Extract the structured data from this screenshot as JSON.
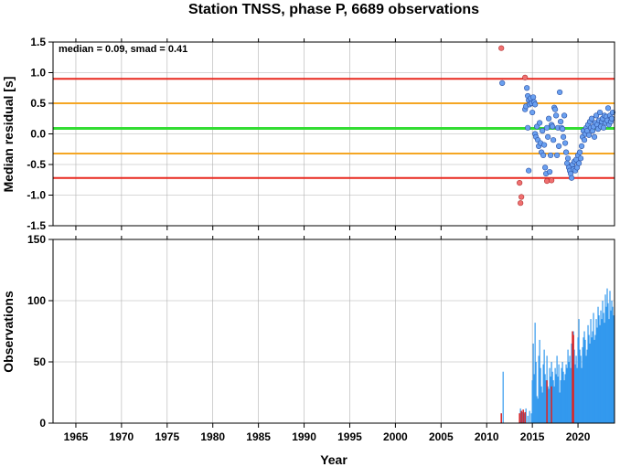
{
  "title": "Station TNSS, phase P, 6689 observations",
  "colors": {
    "median_line": "#33dd33",
    "smad_lines": "#f5a623",
    "outer_lines": "#e8281e",
    "point_normal": "#6aa0f0",
    "point_outlier": "#f07070",
    "bar_normal": "#3399ee",
    "bar_outlier": "#dd2222"
  },
  "chart_data": [
    {
      "type": "scatter",
      "annotation": "median = 0.09, smad = 0.41",
      "ylabel": "Median residual [s]",
      "xlim": [
        1962.5,
        2024.0
      ],
      "ylim": [
        -1.5,
        1.5
      ],
      "xticks": [
        1965,
        1970,
        1975,
        1980,
        1985,
        1990,
        1995,
        2000,
        2005,
        2010,
        2015,
        2020
      ],
      "yticks": [
        -1.5,
        -1.0,
        -0.5,
        0.0,
        0.5,
        1.0,
        1.5
      ],
      "ytick_labels": [
        "-1.5",
        "-1.0",
        "-0.5",
        "0.0",
        "0.5",
        "1.0",
        "1.5"
      ],
      "grid": true,
      "hlines": [
        {
          "y": 0.9,
          "kind": "outer"
        },
        {
          "y": 0.5,
          "kind": "smad"
        },
        {
          "y": 0.09,
          "kind": "median"
        },
        {
          "y": -0.32,
          "kind": "smad"
        },
        {
          "y": -0.72,
          "kind": "outer"
        }
      ],
      "outliers": [
        [
          2011.6,
          1.4
        ],
        [
          2013.6,
          -0.8
        ],
        [
          2013.8,
          -1.03
        ],
        [
          2013.7,
          -1.13
        ],
        [
          2014.2,
          0.92
        ],
        [
          2016.6,
          -0.77
        ],
        [
          2017.1,
          -0.76
        ]
      ],
      "points": [
        [
          2011.7,
          0.83
        ],
        [
          2014.2,
          0.4
        ],
        [
          2014.3,
          0.45
        ],
        [
          2014.4,
          0.75
        ],
        [
          2014.5,
          0.62
        ],
        [
          2014.6,
          0.55
        ],
        [
          2014.7,
          0.48
        ],
        [
          2014.8,
          0.58
        ],
        [
          2014.9,
          0.5
        ],
        [
          2015.0,
          0.35
        ],
        [
          2015.1,
          0.6
        ],
        [
          2015.2,
          0.52
        ],
        [
          2015.3,
          0.48
        ],
        [
          2014.5,
          0.1
        ],
        [
          2014.6,
          -0.6
        ],
        [
          2015.3,
          0.0
        ],
        [
          2015.4,
          -0.05
        ],
        [
          2015.5,
          0.12
        ],
        [
          2015.6,
          -0.1
        ],
        [
          2015.7,
          -0.2
        ],
        [
          2015.8,
          0.18
        ],
        [
          2015.9,
          -0.15
        ],
        [
          2016.0,
          -0.3
        ],
        [
          2016.1,
          0.05
        ],
        [
          2016.2,
          -0.35
        ],
        [
          2016.3,
          -0.18
        ],
        [
          2016.4,
          -0.55
        ],
        [
          2016.5,
          -0.65
        ],
        [
          2016.6,
          0.1
        ],
        [
          2016.7,
          -0.05
        ],
        [
          2016.8,
          0.25
        ],
        [
          2016.9,
          -0.62
        ],
        [
          2017.0,
          -0.35
        ],
        [
          2017.1,
          0.15
        ],
        [
          2017.2,
          0.12
        ],
        [
          2017.3,
          -0.1
        ],
        [
          2017.4,
          0.43
        ],
        [
          2017.5,
          0.4
        ],
        [
          2017.6,
          0.3
        ],
        [
          2017.7,
          -0.35
        ],
        [
          2017.8,
          0.1
        ],
        [
          2017.9,
          -0.2
        ],
        [
          2018.0,
          0.68
        ],
        [
          2018.1,
          0.2
        ],
        [
          2018.2,
          0.1
        ],
        [
          2018.3,
          0.08
        ],
        [
          2018.4,
          -0.05
        ],
        [
          2018.5,
          0.3
        ],
        [
          2018.6,
          -0.15
        ],
        [
          2018.7,
          -0.3
        ],
        [
          2018.8,
          -0.48
        ],
        [
          2018.9,
          -0.4
        ],
        [
          2019.0,
          -0.55
        ],
        [
          2019.1,
          -0.6
        ],
        [
          2019.2,
          -0.65
        ],
        [
          2019.3,
          -0.72
        ],
        [
          2019.4,
          -0.5
        ],
        [
          2019.5,
          -0.58
        ],
        [
          2019.6,
          -0.45
        ],
        [
          2019.7,
          -0.6
        ],
        [
          2019.8,
          -0.42
        ],
        [
          2019.9,
          -0.55
        ],
        [
          2020.0,
          -0.35
        ],
        [
          2020.1,
          -0.48
        ],
        [
          2020.2,
          -0.3
        ],
        [
          2020.3,
          -0.4
        ],
        [
          2020.4,
          -0.2
        ],
        [
          2020.5,
          -0.05
        ],
        [
          2020.6,
          0.05
        ],
        [
          2020.7,
          -0.1
        ],
        [
          2020.8,
          0.0
        ],
        [
          2020.9,
          0.1
        ],
        [
          2021.0,
          0.05
        ],
        [
          2021.1,
          0.15
        ],
        [
          2021.2,
          -0.02
        ],
        [
          2021.3,
          0.2
        ],
        [
          2021.4,
          0.1
        ],
        [
          2021.5,
          0.25
        ],
        [
          2021.6,
          0.05
        ],
        [
          2021.7,
          0.12
        ],
        [
          2021.8,
          -0.05
        ],
        [
          2021.9,
          0.18
        ],
        [
          2022.0,
          0.3
        ],
        [
          2022.1,
          0.15
        ],
        [
          2022.2,
          0.08
        ],
        [
          2022.3,
          0.22
        ],
        [
          2022.4,
          0.35
        ],
        [
          2022.5,
          0.12
        ],
        [
          2022.6,
          0.2
        ],
        [
          2022.7,
          0.25
        ],
        [
          2022.8,
          0.1
        ],
        [
          2022.9,
          0.3
        ],
        [
          2023.0,
          0.18
        ],
        [
          2023.1,
          0.28
        ],
        [
          2023.2,
          0.22
        ],
        [
          2023.3,
          0.42
        ],
        [
          2023.4,
          0.15
        ],
        [
          2023.5,
          0.3
        ],
        [
          2023.6,
          0.2
        ],
        [
          2023.7,
          0.25
        ],
        [
          2023.8,
          0.35
        ]
      ]
    },
    {
      "type": "bar",
      "ylabel": "Observations",
      "xlabel": "Year",
      "xlim": [
        1962.5,
        2024.0
      ],
      "ylim": [
        0,
        150
      ],
      "xticks": [
        1965,
        1970,
        1975,
        1980,
        1985,
        1990,
        1995,
        2000,
        2005,
        2010,
        2015,
        2020
      ],
      "yticks": [
        0,
        50,
        100,
        150
      ],
      "grid": true,
      "bar_width_years": 0.08,
      "bars": [
        [
          2011.6,
          8
        ],
        [
          2011.8,
          42
        ],
        [
          2013.6,
          8
        ],
        [
          2013.7,
          12
        ],
        [
          2013.8,
          10
        ],
        [
          2013.9,
          9
        ],
        [
          2014.0,
          11
        ],
        [
          2014.1,
          8
        ],
        [
          2014.3,
          12
        ],
        [
          2014.5,
          6
        ],
        [
          2014.7,
          10
        ],
        [
          2014.9,
          8
        ],
        [
          2015.0,
          35
        ],
        [
          2015.1,
          65
        ],
        [
          2015.2,
          40
        ],
        [
          2015.3,
          82
        ],
        [
          2015.4,
          50
        ],
        [
          2015.5,
          22
        ],
        [
          2015.6,
          20
        ],
        [
          2015.7,
          55
        ],
        [
          2015.8,
          68
        ],
        [
          2015.9,
          45
        ],
        [
          2016.0,
          30
        ],
        [
          2016.1,
          25
        ],
        [
          2016.2,
          48
        ],
        [
          2016.3,
          60
        ],
        [
          2016.4,
          40
        ],
        [
          2016.5,
          35
        ],
        [
          2016.6,
          55
        ],
        [
          2016.7,
          30
        ],
        [
          2016.8,
          28
        ],
        [
          2016.9,
          45
        ],
        [
          2017.0,
          38
        ],
        [
          2017.1,
          50
        ],
        [
          2017.2,
          42
        ],
        [
          2017.3,
          35
        ],
        [
          2017.4,
          30
        ],
        [
          2017.5,
          45
        ],
        [
          2017.6,
          40
        ],
        [
          2017.7,
          55
        ],
        [
          2017.8,
          38
        ],
        [
          2017.9,
          48
        ],
        [
          2018.0,
          25
        ],
        [
          2018.1,
          35
        ],
        [
          2018.2,
          45
        ],
        [
          2018.3,
          50
        ],
        [
          2018.4,
          42
        ],
        [
          2018.5,
          35
        ],
        [
          2018.6,
          40
        ],
        [
          2018.7,
          48
        ],
        [
          2018.8,
          45
        ],
        [
          2018.9,
          60
        ],
        [
          2019.0,
          50
        ],
        [
          2019.1,
          55
        ],
        [
          2019.2,
          45
        ],
        [
          2019.3,
          65
        ],
        [
          2019.4,
          72
        ],
        [
          2019.5,
          75
        ],
        [
          2019.6,
          60
        ],
        [
          2019.7,
          48
        ],
        [
          2019.8,
          55
        ],
        [
          2019.9,
          45
        ],
        [
          2020.0,
          70
        ],
        [
          2020.1,
          85
        ],
        [
          2020.2,
          60
        ],
        [
          2020.3,
          55
        ],
        [
          2020.4,
          45
        ],
        [
          2020.5,
          62
        ],
        [
          2020.6,
          70
        ],
        [
          2020.7,
          75
        ],
        [
          2020.8,
          68
        ],
        [
          2020.9,
          55
        ],
        [
          2021.0,
          60
        ],
        [
          2021.1,
          80
        ],
        [
          2021.2,
          72
        ],
        [
          2021.3,
          65
        ],
        [
          2021.4,
          85
        ],
        [
          2021.5,
          70
        ],
        [
          2021.6,
          75
        ],
        [
          2021.7,
          90
        ],
        [
          2021.8,
          68
        ],
        [
          2021.9,
          72
        ],
        [
          2022.0,
          85
        ],
        [
          2022.1,
          78
        ],
        [
          2022.2,
          95
        ],
        [
          2022.3,
          88
        ],
        [
          2022.4,
          80
        ],
        [
          2022.5,
          92
        ],
        [
          2022.6,
          85
        ],
        [
          2022.7,
          100
        ],
        [
          2022.8,
          90
        ],
        [
          2022.9,
          82
        ],
        [
          2023.0,
          105
        ],
        [
          2023.1,
          95
        ],
        [
          2023.2,
          110
        ],
        [
          2023.3,
          98
        ],
        [
          2023.4,
          85
        ],
        [
          2023.5,
          108
        ],
        [
          2023.6,
          92
        ],
        [
          2023.7,
          100
        ],
        [
          2023.8,
          95
        ],
        [
          2023.9,
          88
        ]
      ],
      "outlier_bars": [
        [
          2011.6,
          8
        ],
        [
          2013.6,
          8
        ],
        [
          2013.8,
          10
        ],
        [
          2014.0,
          11
        ],
        [
          2014.2,
          9
        ],
        [
          2016.6,
          35
        ],
        [
          2017.1,
          30
        ],
        [
          2019.4,
          75
        ],
        [
          2019.5,
          72
        ]
      ]
    }
  ]
}
